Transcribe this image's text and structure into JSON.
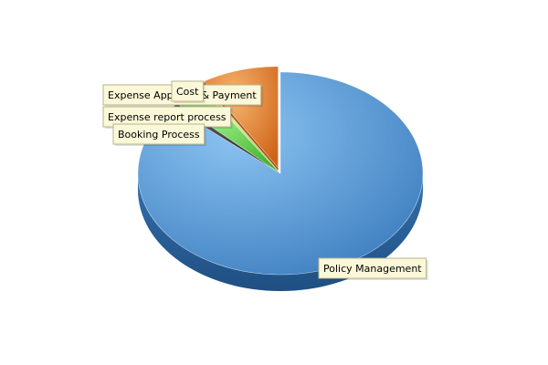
{
  "chart_data": {
    "type": "pie",
    "title": "",
    "categories": [
      "Policy Management",
      "Booking Process",
      "Expense report process",
      "Expense Approval & Payment",
      "Cost"
    ],
    "values": [
      86.3,
      0.8,
      3.6,
      0.6,
      8.7
    ],
    "exploded": [
      "Cost"
    ],
    "legend": "none",
    "colors": {
      "Policy Management": "#5b9bd5",
      "Booking Process": "#2f2f2f",
      "Expense report process": "#5ccf3f",
      "Expense Approval & Payment": "#b9d36a",
      "Cost": "#e8842f"
    }
  }
}
